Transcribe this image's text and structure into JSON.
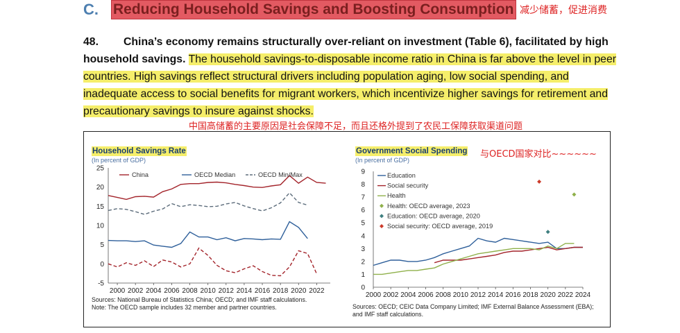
{
  "header": {
    "letter": "C.",
    "title": "Reducing Household Savings and Boosting Consumption",
    "annotation_cn": "减少储蓄，促进消费"
  },
  "paragraph": {
    "number": "48.",
    "bold_text": "China’s economy remains structurally over-reliant on investment (Table 6), facilitated by high household savings.",
    "highlighted_text": "The household savings-to-disposable income ratio in China is far above the level in peer countries. High savings reflect structural drivers including population aging, low social spending, and inadequate access to social benefits for migrant workers, which incentivize higher savings for retirement and precautionary savings to insure against shocks."
  },
  "annotations": {
    "below_paragraph_cn": "中国高储蓄的主要原因是社会保障不足，而且还格外提到了农民工保障获取渠道问题",
    "right_chart_cn": "与OECD国家对比~~~~~~"
  },
  "chart_data": [
    {
      "type": "line",
      "title": "Household Savings Rate",
      "subtitle": "(In percent of GDP)",
      "ylim": [
        -5,
        25
      ],
      "yticks": [
        -5,
        0,
        5,
        10,
        15,
        20,
        25
      ],
      "xticks": [
        2000,
        2002,
        2004,
        2006,
        2008,
        2010,
        2012,
        2014,
        2016,
        2018,
        2020,
        2022
      ],
      "x": [
        1999,
        2000,
        2001,
        2002,
        2003,
        2004,
        2005,
        2006,
        2007,
        2008,
        2009,
        2010,
        2011,
        2012,
        2013,
        2014,
        2015,
        2016,
        2017,
        2018,
        2019,
        2020,
        2021,
        2022,
        2023
      ],
      "series": [
        {
          "name": "China",
          "color": "#a3232a",
          "style": "solid",
          "values": [
            17.8,
            17.3,
            16.8,
            17.5,
            17.6,
            17.4,
            18.8,
            19.5,
            20.7,
            20.9,
            20.9,
            21.2,
            21.3,
            21.1,
            20.7,
            20.4,
            20.0,
            19.9,
            20.3,
            20.6,
            23.0,
            21.0,
            22.6,
            21.2,
            21.0
          ]
        },
        {
          "name": "OECD Median",
          "color": "#2e5f9a",
          "style": "solid",
          "values": [
            6.1,
            6.0,
            6.0,
            5.8,
            6.0,
            4.9,
            4.6,
            4.3,
            5.3,
            8.3,
            7.0,
            7.0,
            6.3,
            6.8,
            6.0,
            6.6,
            6.5,
            6.3,
            6.5,
            6.4,
            11.0,
            9.5,
            6.6,
            null,
            null
          ]
        },
        {
          "name": "OECD Min/Max",
          "color": "#5b6b7a",
          "style": "dashed",
          "values": [
            13.9,
            14.4,
            14.2,
            13.6,
            12.9,
            13.7,
            14.3,
            15.7,
            14.9,
            15.4,
            15.2,
            14.9,
            15.0,
            15.6,
            16.0,
            15.1,
            14.4,
            13.8,
            14.6,
            15.9,
            18.5,
            16.0,
            15.3,
            null,
            null
          ]
        },
        {
          "name": "",
          "color": "#a3232a",
          "style": "dashed",
          "values": [
            0.0,
            -0.8,
            0.3,
            -0.4,
            0.8,
            -0.7,
            1.0,
            0.5,
            -0.8,
            0.0,
            4.1,
            2.2,
            -0.4,
            -1.8,
            -2.3,
            -1.3,
            -0.5,
            -2.0,
            -3.0,
            -3.1,
            -0.8,
            3.4,
            2.7,
            -2.6,
            null
          ]
        }
      ],
      "source": "Sources: National Bureau of Statistics China; OECD; and IMF staff calculations.",
      "note": "Note: The OECD sample includes 32 member and partner countries."
    },
    {
      "type": "line",
      "title": "Government Social Spending",
      "subtitle": "(In percent of GDP)",
      "ylim": [
        0,
        9
      ],
      "yticks": [
        0,
        1,
        2,
        3,
        4,
        5,
        6,
        7,
        8,
        9
      ],
      "xticks": [
        2000,
        2002,
        2004,
        2006,
        2008,
        2010,
        2012,
        2014,
        2016,
        2018,
        2020,
        2022,
        2024
      ],
      "x": [
        2000,
        2001,
        2002,
        2003,
        2004,
        2005,
        2006,
        2007,
        2008,
        2009,
        2010,
        2011,
        2012,
        2013,
        2014,
        2015,
        2016,
        2017,
        2018,
        2019,
        2020,
        2021,
        2022,
        2023,
        2024
      ],
      "series": [
        {
          "name": "Education",
          "color": "#2e5f9a",
          "values": [
            1.7,
            1.9,
            2.1,
            2.1,
            2.0,
            2.0,
            2.1,
            2.3,
            2.6,
            2.8,
            3.0,
            3.2,
            3.8,
            3.6,
            3.5,
            3.8,
            3.7,
            3.6,
            3.5,
            3.4,
            3.5,
            3.0,
            3.0,
            3.1,
            3.1
          ]
        },
        {
          "name": "Social security",
          "color": "#a3232a",
          "values": [
            null,
            null,
            null,
            null,
            null,
            null,
            null,
            1.9,
            2.1,
            2.1,
            2.1,
            2.2,
            2.3,
            2.4,
            2.5,
            2.7,
            2.8,
            2.8,
            2.9,
            3.0,
            3.1,
            2.9,
            3.0,
            3.1,
            3.1
          ]
        },
        {
          "name": "Health",
          "color": "#8fb04a",
          "values": [
            1.0,
            1.0,
            1.1,
            1.2,
            1.3,
            1.3,
            1.4,
            1.5,
            1.8,
            2.0,
            2.2,
            2.4,
            2.6,
            2.7,
            2.8,
            2.9,
            3.0,
            3.0,
            3.0,
            2.9,
            3.2,
            3.0,
            3.4,
            3.4,
            null
          ]
        }
      ],
      "markers": [
        {
          "name": "Health: OECD average, 2023",
          "color": "#8fb04a",
          "x": 2023,
          "y": 7.2
        },
        {
          "name": "Education: OECD average, 2020",
          "color": "#3f7f80",
          "x": 2020,
          "y": 4.3
        },
        {
          "name": "Social security: OECD average, 2019",
          "color": "#cc3b2a",
          "x": 2019,
          "y": 8.2
        }
      ],
      "source": "Sources: OECD; CEIC Data Company Limited; IMF External Balance Assessment (EBA); and IMF staff calculations."
    }
  ]
}
